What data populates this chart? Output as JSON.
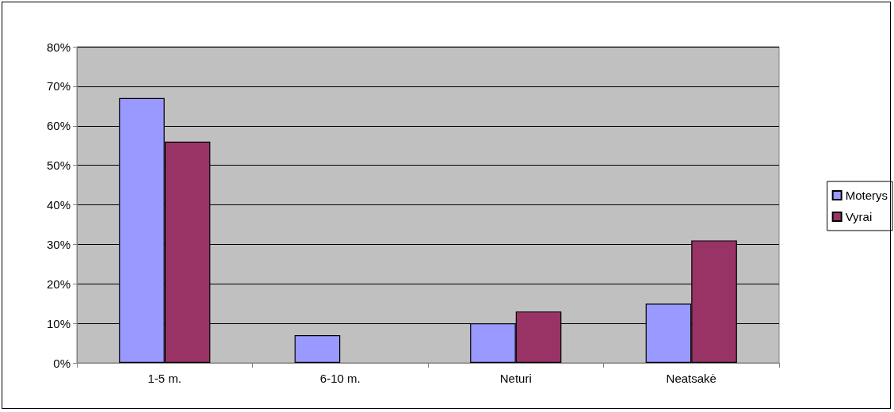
{
  "chart_data": {
    "type": "bar",
    "categories": [
      "1-5 m.",
      "6-10 m.",
      "Neturi",
      "Neatsakė"
    ],
    "series": [
      {
        "name": "Moterys",
        "color": "#9999ff",
        "values": [
          67,
          7,
          10,
          15
        ]
      },
      {
        "name": "Vyrai",
        "color": "#993366",
        "values": [
          56,
          null,
          13,
          31
        ]
      }
    ],
    "ylim": [
      0,
      80
    ],
    "yticks": [
      {
        "value": 0,
        "label": "0%"
      },
      {
        "value": 10,
        "label": "10%"
      },
      {
        "value": 20,
        "label": "20%"
      },
      {
        "value": 30,
        "label": "30%"
      },
      {
        "value": 40,
        "label": "40%"
      },
      {
        "value": 50,
        "label": "50%"
      },
      {
        "value": 60,
        "label": "60%"
      },
      {
        "value": 70,
        "label": "70%"
      },
      {
        "value": 80,
        "label": "80%"
      }
    ],
    "grid": "y",
    "legend": "right"
  }
}
